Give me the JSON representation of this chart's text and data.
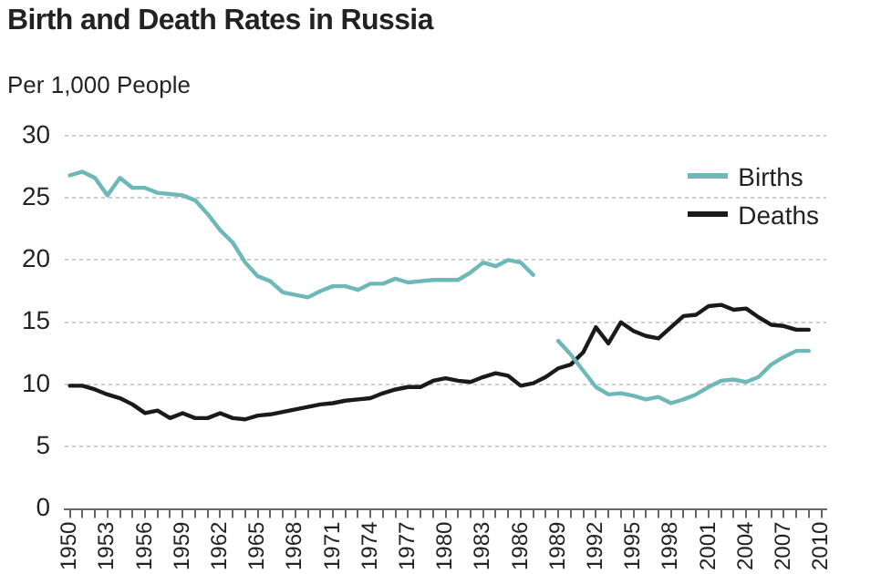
{
  "chart_data": {
    "type": "line",
    "title": "Birth and Death Rates in Russia",
    "ylabel": "Per 1,000 People",
    "x": [
      1950,
      1951,
      1952,
      1953,
      1954,
      1955,
      1956,
      1957,
      1958,
      1959,
      1960,
      1961,
      1962,
      1963,
      1964,
      1965,
      1966,
      1967,
      1968,
      1969,
      1970,
      1971,
      1972,
      1973,
      1974,
      1975,
      1976,
      1977,
      1978,
      1979,
      1980,
      1981,
      1982,
      1983,
      1984,
      1985,
      1986,
      1987,
      1988,
      1989,
      1990,
      1991,
      1992,
      1993,
      1994,
      1995,
      1996,
      1997,
      1998,
      1999,
      2000,
      2001,
      2002,
      2003,
      2004,
      2005,
      2006,
      2007,
      2008,
      2009
    ],
    "series": [
      {
        "name": "Births",
        "color": "#6fb8b8",
        "values": [
          26.8,
          27.1,
          26.6,
          25.2,
          26.6,
          25.8,
          25.8,
          25.4,
          25.3,
          25.2,
          24.8,
          23.7,
          22.4,
          21.4,
          19.8,
          18.7,
          18.3,
          17.4,
          17.2,
          17.0,
          17.5,
          17.9,
          17.9,
          17.6,
          18.1,
          18.1,
          18.5,
          18.2,
          18.3,
          18.4,
          18.4,
          18.4,
          19.0,
          19.8,
          19.5,
          20.0,
          19.8,
          18.8,
          null,
          13.5,
          12.4,
          11.1,
          9.8,
          9.2,
          9.3,
          9.1,
          8.8,
          9.0,
          8.5,
          8.8,
          9.2,
          9.8,
          10.3,
          10.4,
          10.2,
          10.6,
          11.6,
          12.2,
          12.7,
          12.7
        ]
      },
      {
        "name": "Deaths",
        "color": "#1a1a1a",
        "values": [
          9.9,
          9.9,
          9.6,
          9.2,
          8.9,
          8.4,
          7.7,
          7.9,
          7.3,
          7.7,
          7.3,
          7.3,
          7.7,
          7.3,
          7.2,
          7.5,
          7.6,
          7.8,
          8.0,
          8.2,
          8.4,
          8.5,
          8.7,
          8.8,
          8.9,
          9.3,
          9.6,
          9.8,
          9.8,
          10.3,
          10.5,
          10.3,
          10.2,
          10.6,
          10.9,
          10.7,
          9.9,
          10.1,
          10.6,
          11.3,
          11.6,
          12.6,
          14.6,
          13.3,
          15.0,
          14.3,
          13.9,
          13.7,
          14.6,
          15.5,
          15.6,
          16.3,
          16.4,
          16.0,
          16.1,
          15.4,
          14.8,
          14.7,
          14.4,
          14.4
        ]
      }
    ],
    "xlim": [
      1949.6,
      2010.4
    ],
    "xticks": [
      1950,
      {
        "value": 1951,
        "label": null
      },
      {
        "value": 1952,
        "label": null
      },
      1953,
      {
        "value": 1954,
        "label": null
      },
      {
        "value": 1955,
        "label": null
      },
      1956,
      {
        "value": 1957,
        "label": null
      },
      {
        "value": 1958,
        "label": null
      },
      1959,
      {
        "value": 1960,
        "label": null
      },
      {
        "value": 1961,
        "label": null
      },
      1962,
      {
        "value": 1963,
        "label": null
      },
      {
        "value": 1964,
        "label": null
      },
      1965,
      {
        "value": 1966,
        "label": null
      },
      {
        "value": 1967,
        "label": null
      },
      1968,
      {
        "value": 1969,
        "label": null
      },
      {
        "value": 1970,
        "label": null
      },
      1971,
      {
        "value": 1972,
        "label": null
      },
      {
        "value": 1973,
        "label": null
      },
      1974,
      {
        "value": 1975,
        "label": null
      },
      {
        "value": 1976,
        "label": null
      },
      1977,
      {
        "value": 1978,
        "label": null
      },
      {
        "value": 1979,
        "label": null
      },
      1980,
      {
        "value": 1981,
        "label": null
      },
      {
        "value": 1982,
        "label": null
      },
      1983,
      {
        "value": 1984,
        "label": null
      },
      {
        "value": 1985,
        "label": null
      },
      1986,
      {
        "value": 1987,
        "label": null
      },
      {
        "value": 1988,
        "label": null
      },
      1989,
      {
        "value": 1990,
        "label": null
      },
      {
        "value": 1991,
        "label": null
      },
      1992,
      {
        "value": 1993,
        "label": null
      },
      {
        "value": 1994,
        "label": null
      },
      1995,
      {
        "value": 1996,
        "label": null
      },
      {
        "value": 1997,
        "label": null
      },
      1998,
      {
        "value": 1999,
        "label": null
      },
      {
        "value": 2000,
        "label": null
      },
      2001,
      {
        "value": 2002,
        "label": null
      },
      {
        "value": 2003,
        "label": null
      },
      2004,
      {
        "value": 2005,
        "label": null
      },
      {
        "value": 2006,
        "label": null
      },
      2007,
      {
        "value": 2008,
        "label": null
      },
      {
        "value": 2009,
        "label": null
      },
      2010
    ],
    "ylim": [
      0,
      30
    ],
    "yticks": [
      0,
      5,
      10,
      15,
      20,
      25,
      30
    ],
    "grid": "y",
    "legend": "top right",
    "marker": "none",
    "line_style": "solid"
  }
}
